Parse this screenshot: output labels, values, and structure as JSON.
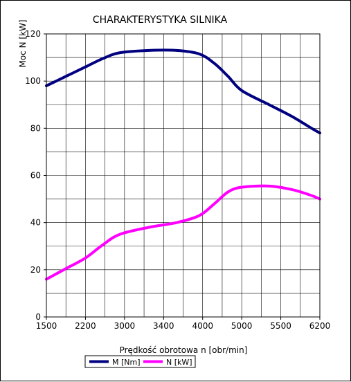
{
  "chart_data": {
    "type": "line",
    "title": "CHARAKTERYSTYKA SILNIKA",
    "xlabel": "Prędkość obrotowa n [obr/min]",
    "ylabel": "Moc N [kW]",
    "xlim": [
      1500,
      6200
    ],
    "ylim": [
      0,
      120
    ],
    "x_ticks": [
      "1500",
      "2200",
      "3000",
      "3400",
      "4000",
      "5000",
      "5500",
      "6200"
    ],
    "y_ticks": [
      "0",
      "20",
      "40",
      "60",
      "80",
      "100",
      "120"
    ],
    "y_tick_values": [
      0,
      20,
      40,
      60,
      80,
      100,
      120
    ],
    "grid": true,
    "legend_position": "bottom",
    "series": [
      {
        "name": "M [Nm]",
        "color": "#000080",
        "x": [
          1500,
          1850,
          2200,
          2550,
          2900,
          3250,
          3600,
          3950,
          4300,
          4650,
          5000,
          5350,
          5700,
          6050,
          6200
        ],
        "y": [
          98,
          102,
          106,
          109.5,
          112,
          113,
          113,
          111.5,
          107.5,
          102,
          96,
          90,
          85,
          80,
          78
        ]
      },
      {
        "name": "N [kW]",
        "color": "#ff00ff",
        "x": [
          1500,
          1850,
          2200,
          2550,
          2900,
          3250,
          3600,
          3950,
          4300,
          4650,
          5000,
          5350,
          5700,
          6050,
          6200
        ],
        "y": [
          16,
          20.5,
          25,
          30.5,
          35,
          38,
          40,
          43,
          48,
          53,
          55,
          55.5,
          54,
          51.5,
          50
        ]
      }
    ]
  }
}
